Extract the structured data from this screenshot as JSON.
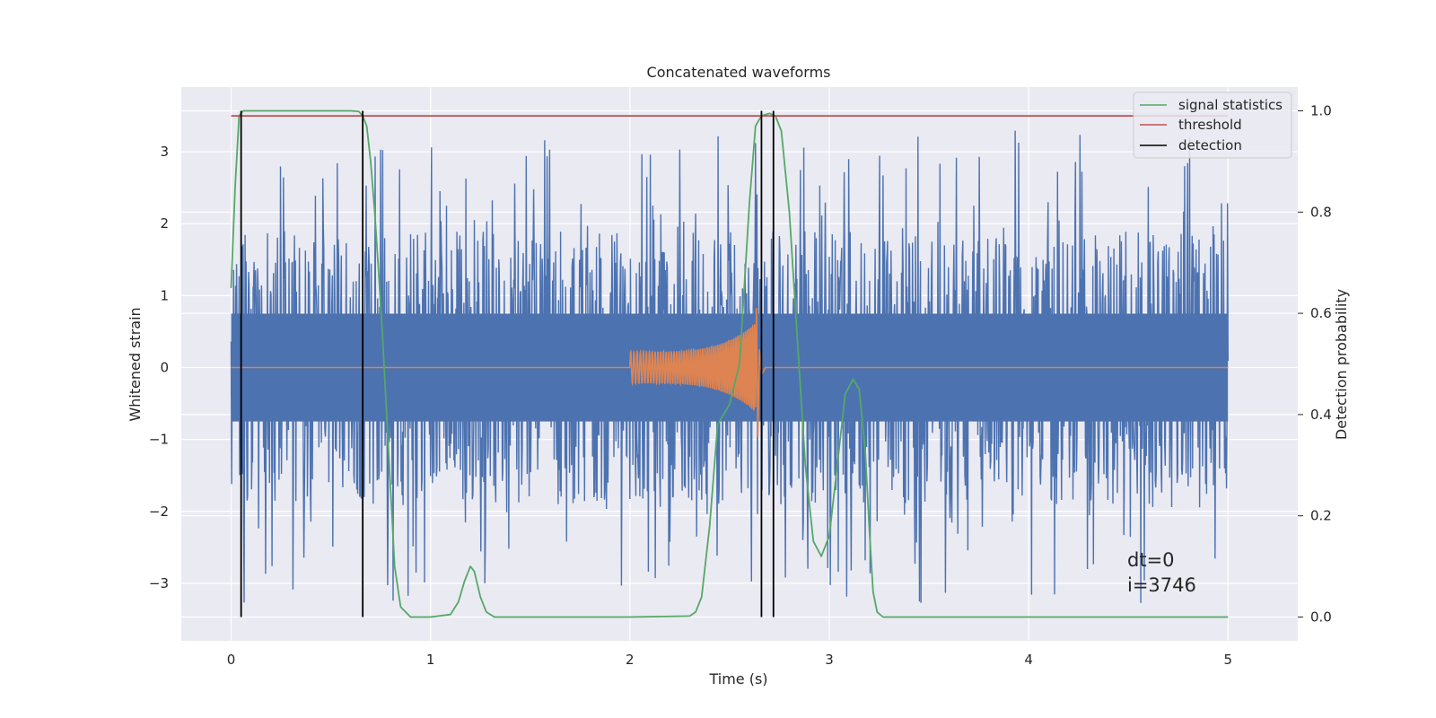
{
  "chart_data": {
    "type": "line",
    "title": "Concatenated waveforms",
    "xlabel": "Time (s)",
    "ylabel": "Whitened strain",
    "y2label": "Detection probability",
    "xlim": [
      -0.25,
      5.35
    ],
    "ylim": [
      -3.8,
      3.9
    ],
    "y2lim": [
      -0.047,
      1.047
    ],
    "xticks": [
      0,
      1,
      2,
      3,
      4,
      5
    ],
    "xtick_labels": [
      "0",
      "1",
      "2",
      "3",
      "4",
      "5"
    ],
    "yticks": [
      -3,
      -2,
      -1,
      0,
      1,
      2,
      3
    ],
    "ytick_labels": [
      "−3",
      "−2",
      "−1",
      "0",
      "1",
      "2",
      "3"
    ],
    "y2ticks": [
      0.0,
      0.2,
      0.4,
      0.6,
      0.8,
      1.0
    ],
    "y2tick_labels": [
      "0.0",
      "0.2",
      "0.4",
      "0.6",
      "0.8",
      "1.0"
    ],
    "grid": true,
    "legend_position": "top-right",
    "legend": [
      "signal statistics",
      "threshold",
      "detection"
    ],
    "colors": {
      "strain": "#4c72b0",
      "template": "#dd8452",
      "signal_statistics": "#55a868",
      "threshold": "#c44e52",
      "detection": "#000000",
      "background": "#eaeaf2",
      "grid": "#ffffff"
    },
    "series": [
      {
        "name": "signal statistics",
        "axis": "right",
        "x": [
          0.0,
          0.02,
          0.04,
          0.06,
          0.08,
          0.1,
          0.2,
          0.4,
          0.6,
          0.64,
          0.66,
          0.68,
          0.7,
          0.72,
          0.74,
          0.76,
          0.78,
          0.8,
          0.82,
          0.85,
          0.9,
          1.0,
          1.1,
          1.14,
          1.17,
          1.2,
          1.22,
          1.25,
          1.28,
          1.32,
          1.5,
          2.0,
          2.3,
          2.33,
          2.36,
          2.4,
          2.44,
          2.5,
          2.55,
          2.6,
          2.63,
          2.66,
          2.7,
          2.73,
          2.76,
          2.8,
          2.84,
          2.88,
          2.92,
          2.96,
          3.0,
          3.04,
          3.08,
          3.12,
          3.15,
          3.18,
          3.2,
          3.22,
          3.24,
          3.27,
          3.3,
          3.5,
          4.0,
          4.5,
          5.0
        ],
        "y": [
          0.65,
          0.85,
          0.99,
          1.0,
          1.0,
          1.0,
          1.0,
          1.0,
          1.0,
          0.999,
          0.99,
          0.97,
          0.9,
          0.8,
          0.68,
          0.55,
          0.4,
          0.25,
          0.1,
          0.02,
          0.0,
          0.0,
          0.005,
          0.03,
          0.07,
          0.1,
          0.09,
          0.04,
          0.01,
          0.0,
          0.0,
          0.0,
          0.002,
          0.01,
          0.04,
          0.18,
          0.38,
          0.42,
          0.5,
          0.82,
          0.97,
          0.99,
          0.995,
          0.99,
          0.96,
          0.8,
          0.55,
          0.3,
          0.15,
          0.12,
          0.16,
          0.3,
          0.44,
          0.47,
          0.45,
          0.33,
          0.18,
          0.05,
          0.01,
          0.0,
          0.0,
          0.0,
          0.0,
          0.0,
          0.0
        ]
      },
      {
        "name": "threshold",
        "axis": "right",
        "x": [
          0,
          5
        ],
        "y": [
          0.99,
          0.99
        ]
      },
      {
        "name": "detection",
        "axis": "right",
        "type": "vlines",
        "x": [
          0.05,
          0.66,
          2.66,
          2.72
        ],
        "ymin": 0.0,
        "ymax": 1.0
      }
    ],
    "strain": {
      "name": "whitened strain",
      "x_range": [
        0,
        5
      ],
      "samples": 2000,
      "core_amplitude": 0.75,
      "spike_max": 3.6,
      "spike_min": -3.5
    },
    "template": {
      "name": "template waveform",
      "start": 2.0,
      "merger": 2.63,
      "end": 2.68,
      "peak_amplitude": 0.83,
      "trough_amplitude": -0.97
    },
    "annotations": [
      "dt=0",
      "i=3746"
    ]
  }
}
